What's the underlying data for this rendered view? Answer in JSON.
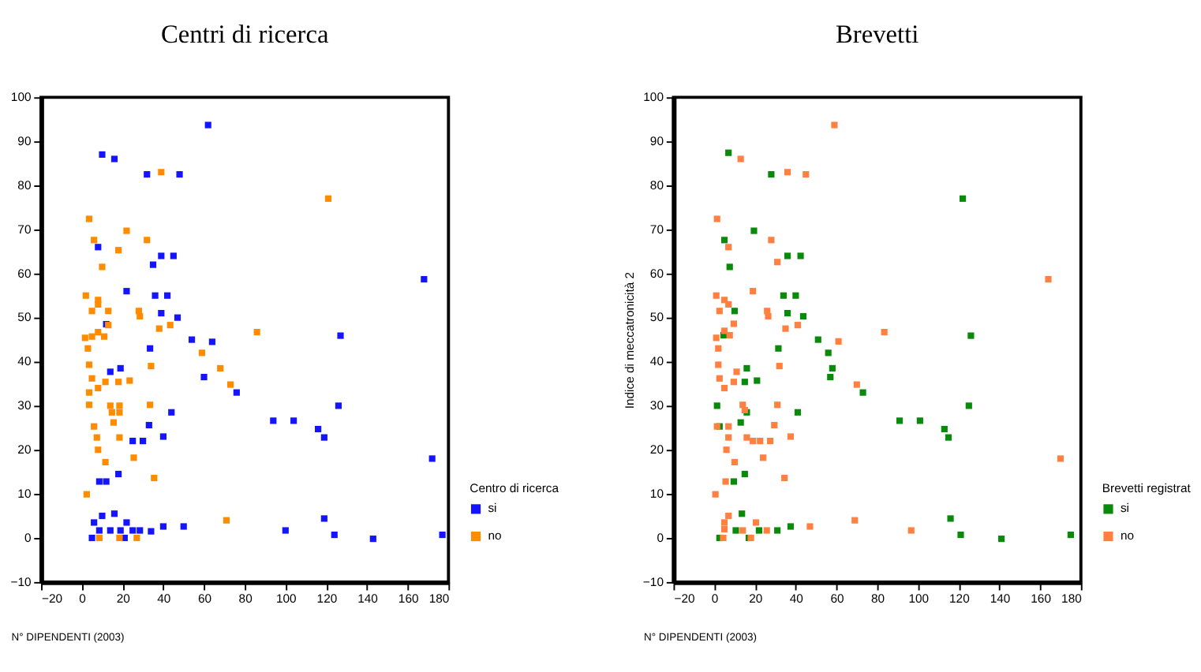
{
  "chart_data": [
    {
      "type": "scatter",
      "title": "Centri di ricerca",
      "xlabel": "N° DIPENDENTI (2003)",
      "legend_title": "Centro di ricerca",
      "xlim": [
        -20,
        180
      ],
      "ylim": [
        -10,
        100
      ],
      "xticks": [
        -20,
        0,
        20,
        40,
        60,
        80,
        100,
        120,
        140,
        160,
        180
      ],
      "yticks": [
        -10,
        0,
        10,
        20,
        30,
        40,
        50,
        60,
        70,
        80,
        90,
        100
      ],
      "grid": false,
      "marker": "square",
      "legend": "bottom right",
      "series": [
        {
          "name": "si",
          "color": "#1414ff",
          "x": [
            62,
            10,
            16,
            32,
            48,
            8,
            39,
            45,
            35,
            22,
            36,
            42,
            39,
            47,
            12,
            54,
            64,
            33.5,
            14,
            19,
            60,
            76,
            44,
            33,
            40,
            25,
            30,
            8.6,
            12,
            18,
            10,
            16,
            6,
            22,
            8.6,
            14,
            19,
            25,
            28.5,
            34,
            40,
            50,
            5,
            21,
            168,
            127,
            126,
            94,
            104,
            116,
            119,
            172,
            119,
            100,
            124,
            143,
            177
          ],
          "values": [
            93.7,
            87,
            86,
            82.5,
            82.5,
            66,
            64,
            64,
            62,
            56,
            55,
            55,
            51,
            50,
            48.5,
            45,
            44.5,
            43,
            37.7,
            38.5,
            36.5,
            33,
            28.5,
            25.6,
            23,
            22,
            22,
            12.8,
            12.8,
            14.5,
            5,
            5.5,
            3.5,
            3.5,
            1.7,
            1.7,
            1.7,
            1.7,
            1.7,
            1.5,
            2.6,
            2.6,
            0,
            0,
            58.7,
            45.9,
            30,
            26.6,
            26.6,
            24.7,
            22.8,
            18,
            4.4,
            1.7,
            0.7,
            -0.2,
            0.7
          ]
        },
        {
          "name": "no",
          "color": "#ff8c00",
          "x": [
            121,
            86,
            3.6,
            22,
            6,
            32,
            18,
            10,
            39,
            2,
            8,
            8,
            5,
            13,
            28,
            28.5,
            13,
            38,
            43.4,
            1.6,
            5,
            8,
            11,
            3,
            59,
            3.6,
            34,
            68,
            5,
            8,
            3.6,
            11.6,
            18,
            23.5,
            73,
            3.6,
            14,
            18.5,
            14.8,
            18.5,
            33.5,
            6,
            15.6,
            7.4,
            8,
            18.5,
            25.5,
            11.6,
            35.5,
            2.4,
            71,
            18.5,
            27,
            8.6
          ],
          "values": [
            77,
            46.7,
            72.4,
            69.7,
            67.6,
            67.6,
            65.3,
            61.5,
            83,
            55,
            54,
            53,
            51.5,
            51.5,
            51.5,
            50.3,
            48.3,
            47.5,
            48.3,
            45.4,
            45.7,
            46.7,
            45.7,
            43,
            42,
            39.3,
            39,
            38.5,
            36.2,
            34,
            33,
            35.4,
            35.4,
            35.7,
            34.8,
            30.2,
            30,
            30,
            28.5,
            28.5,
            30.2,
            25.3,
            26.2,
            22.8,
            20,
            22.8,
            18.2,
            17.2,
            13.6,
            9.9,
            4,
            0,
            0,
            0
          ]
        }
      ]
    },
    {
      "type": "scatter",
      "title": "Brevetti",
      "xlabel": "N° DIPENDENTI (2003)",
      "ylabel": "Indice di meccatronicità 2",
      "legend_title": "Brevetti registrat",
      "xlim": [
        -20,
        180
      ],
      "ylim": [
        -10,
        100
      ],
      "xticks": [
        -20,
        0,
        20,
        40,
        60,
        80,
        100,
        120,
        140,
        160,
        180
      ],
      "yticks": [
        -10,
        0,
        10,
        20,
        30,
        40,
        50,
        60,
        70,
        80,
        90,
        100
      ],
      "grid": false,
      "marker": "square",
      "legend": "bottom right",
      "series": [
        {
          "name": "si",
          "color": "#0a8a0a",
          "x": [
            7,
            28,
            19.5,
            5,
            7.6,
            36,
            42.4,
            34,
            40,
            10,
            36,
            43.7,
            4.6,
            51,
            31.5,
            56,
            16,
            58,
            15,
            21,
            57,
            73,
            1.4,
            16,
            41,
            13,
            2.6,
            15,
            9.6,
            13.6,
            10.6,
            22,
            31,
            37.5,
            2.6,
            17,
            122,
            126,
            125,
            91,
            101,
            113,
            115,
            116,
            121,
            141,
            175
          ],
          "values": [
            87.4,
            82.5,
            69.7,
            67.6,
            61.5,
            64,
            64,
            55,
            55,
            51.5,
            51,
            50.3,
            46,
            45,
            43,
            42,
            38.5,
            38.5,
            35.4,
            35.7,
            36.5,
            33,
            30,
            28.5,
            28.5,
            26.2,
            25.3,
            14.5,
            12.8,
            5.5,
            1.7,
            1.7,
            1.7,
            2.6,
            0,
            0,
            77,
            45.9,
            30,
            26.6,
            26.6,
            24.7,
            22.8,
            4.4,
            0.7,
            -0.2,
            0.7
          ]
        },
        {
          "name": "no",
          "color": "#ff8040",
          "x": [
            59,
            13,
            36,
            45,
            1.4,
            28,
            7,
            31,
            1,
            19,
            5,
            7,
            2.6,
            26,
            26.5,
            9.6,
            35,
            41,
            1,
            7.6,
            5,
            2,
            61,
            2,
            32,
            2.6,
            11,
            9.6,
            5,
            70,
            14,
            15,
            31,
            29.5,
            1.4,
            7,
            7,
            16,
            19,
            22.5,
            27.5,
            37.5,
            6,
            24,
            10,
            5.6,
            34.5,
            0.6,
            7,
            5,
            5,
            20.5,
            14,
            25.8,
            4.4,
            18,
            47,
            69,
            164,
            83.5,
            170,
            96.7
          ],
          "values": [
            93.7,
            86,
            83,
            82.5,
            72.4,
            67.6,
            66,
            62.6,
            55,
            56,
            54,
            53,
            51.5,
            51.5,
            50.3,
            48.6,
            47.5,
            48.3,
            45.4,
            46,
            47,
            43,
            44.6,
            39.3,
            39,
            36.2,
            37.7,
            35.4,
            34,
            34.8,
            30.2,
            29,
            30.2,
            25.6,
            25.3,
            25.3,
            22.8,
            22.8,
            22,
            22,
            22,
            23,
            20,
            18.2,
            17.2,
            12.8,
            13.6,
            9.9,
            5,
            3.5,
            2,
            3.5,
            1.7,
            1.7,
            0,
            0,
            2.6,
            4,
            58.7,
            46.7,
            18,
            1.7
          ]
        }
      ]
    }
  ]
}
